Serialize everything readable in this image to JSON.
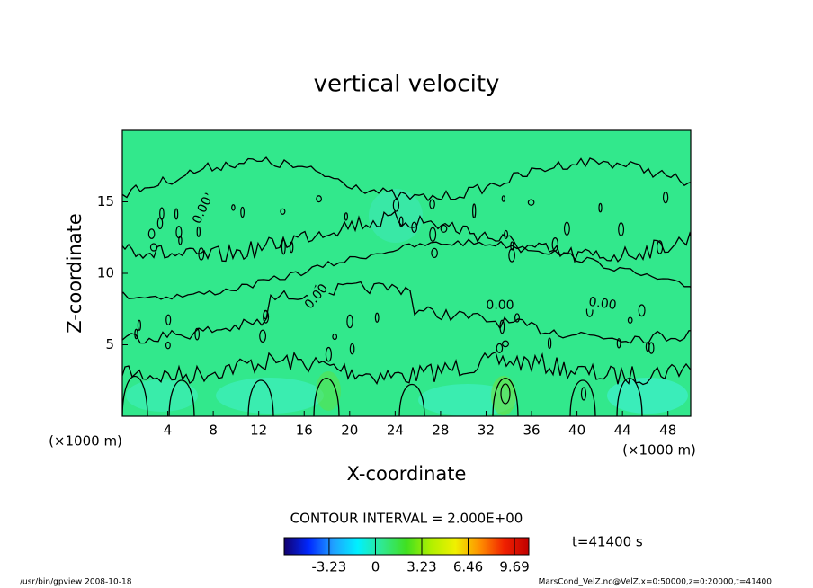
{
  "chart_data": {
    "type": "contour",
    "title": "vertical velocity",
    "x_label": "X-coordinate",
    "y_label": "Z-coordinate",
    "x_unit": "(×1000 m)",
    "y_unit": "(×1000 m)",
    "xlim": [
      0,
      50
    ],
    "xticks": [
      4,
      8,
      12,
      16,
      20,
      24,
      28,
      32,
      36,
      40,
      44,
      48
    ],
    "ylim": [
      0,
      20
    ],
    "yticks": [
      5,
      10,
      15
    ],
    "field_color": "#32e88c",
    "line_color": "#000000",
    "contour_interval": "CONTOUR INTERVAL = 2.000E+00",
    "contour_labels": [
      {
        "value": 0,
        "label": "0.00"
      },
      {
        "value": 0,
        "label": "0.00"
      },
      {
        "value": 0,
        "label": "0.00"
      },
      {
        "value": 0,
        "label": "0.00"
      }
    ],
    "colorbar": {
      "lim": [
        -6.36,
        10.69
      ],
      "ticks": [
        -3.23,
        0,
        3.23,
        6.46,
        9.69
      ],
      "colormap": [
        "#12006e",
        "#0028ff",
        "#20a0ff",
        "#00f0ff",
        "#30e890",
        "#40e020",
        "#b0f000",
        "#f0f000",
        "#ff9000",
        "#f02000",
        "#c00000"
      ]
    },
    "time_label": "t=41400 s",
    "footer_left": "/usr/bin/gpview   2008-10-18",
    "footer_right": "MarsCond_VelZ.nc@VelZ,x=0:50000,z=0:20000,t=41400"
  }
}
